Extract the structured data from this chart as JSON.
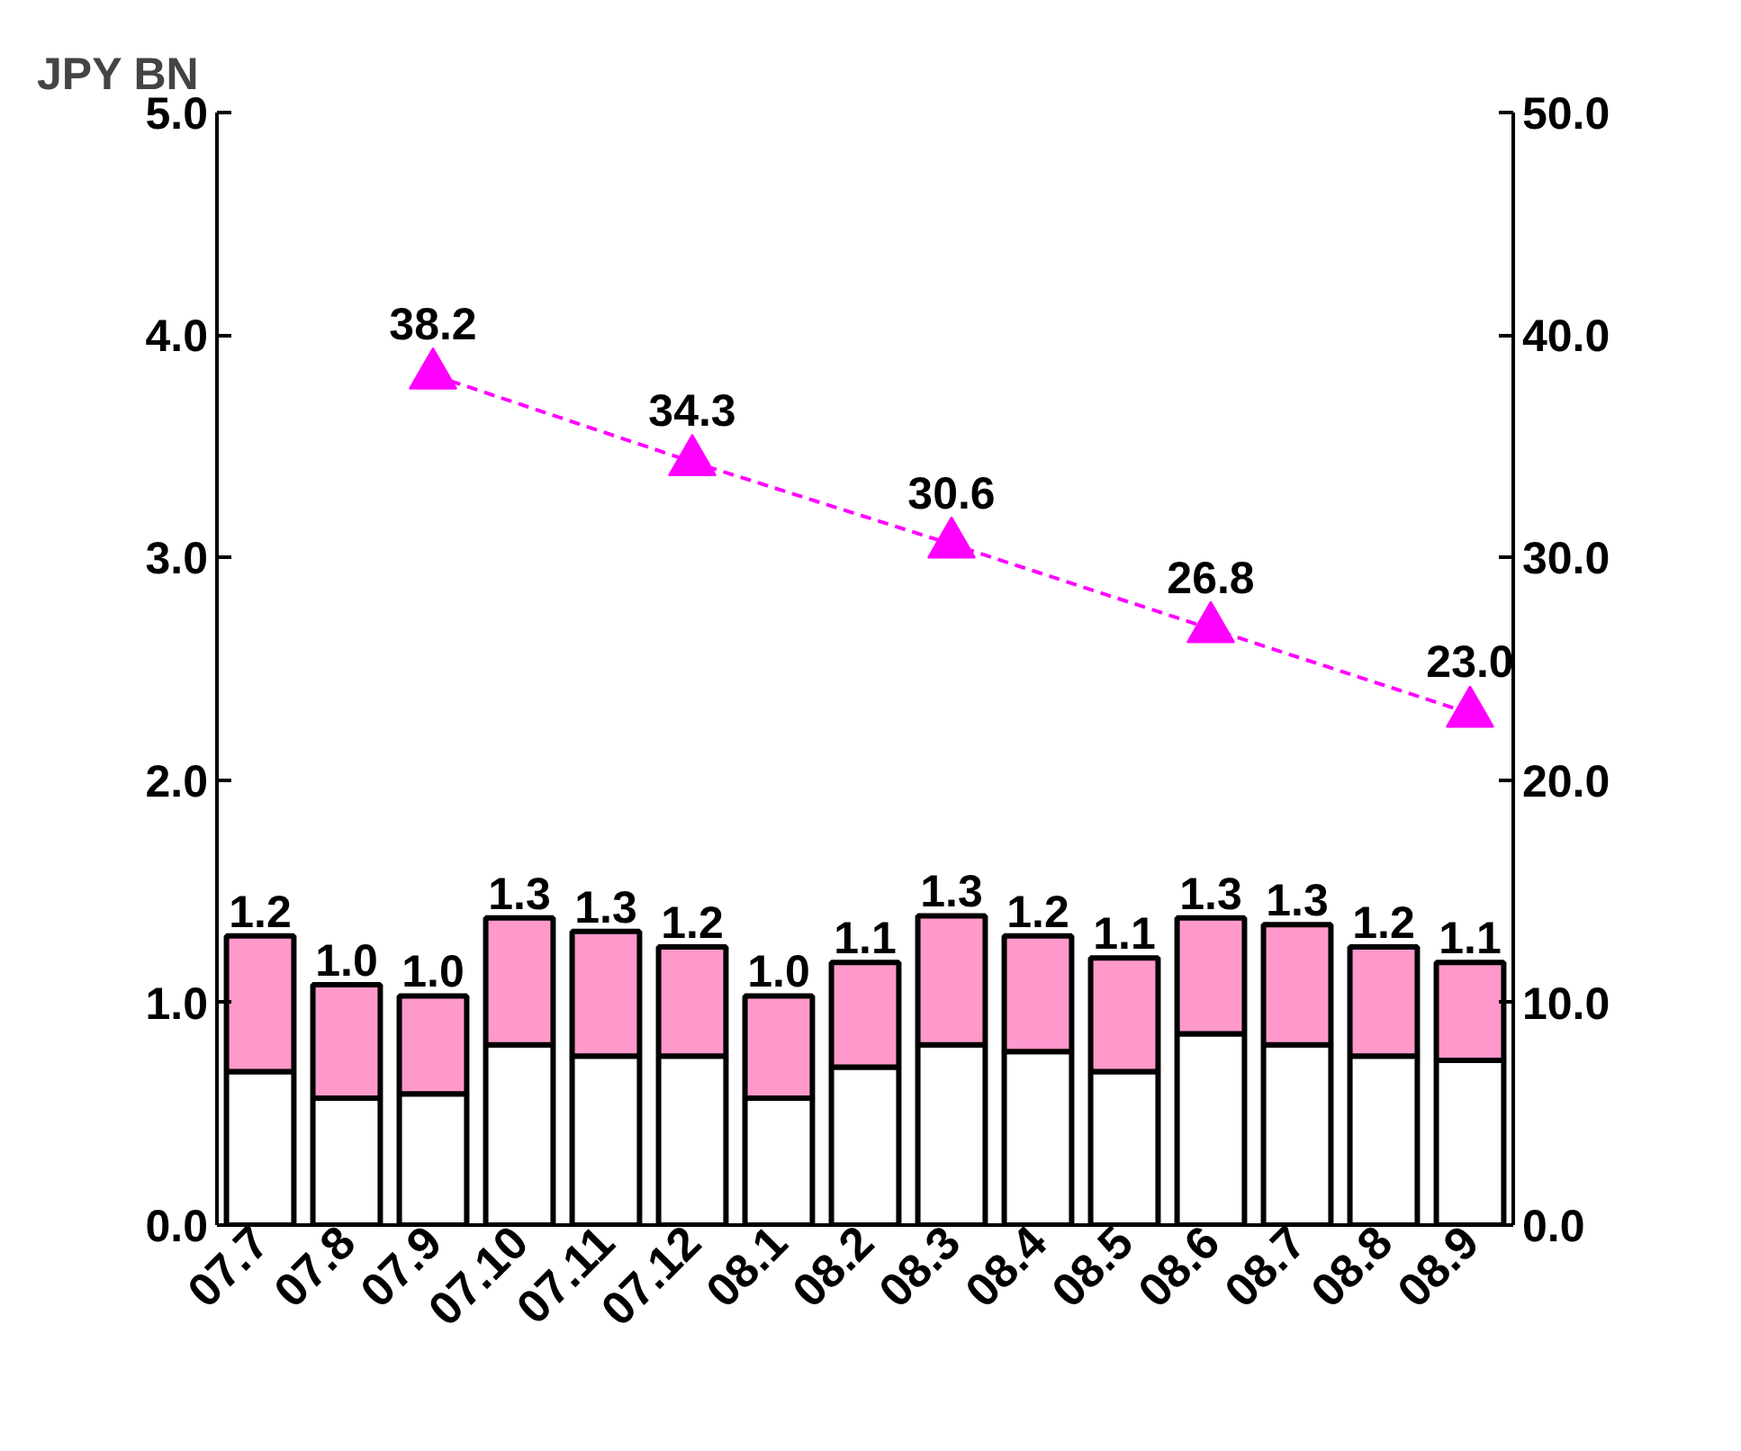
{
  "chart_data": {
    "type": "bar",
    "ylabel": "JPY BN",
    "categories": [
      "07.7",
      "07.8",
      "07.9",
      "07.10",
      "07.11",
      "07.12",
      "08.1",
      "08.2",
      "08.3",
      "08.4",
      "08.5",
      "08.6",
      "08.7",
      "08.8",
      "08.9"
    ],
    "stacked": true,
    "ylim": [
      0,
      5
    ],
    "yticks": [
      {
        "value": 0,
        "label": "0.0"
      },
      {
        "value": 1,
        "label": "1.0"
      },
      {
        "value": 2,
        "label": "2.0"
      },
      {
        "value": 3,
        "label": "3.0"
      },
      {
        "value": 4,
        "label": "4.0"
      },
      {
        "value": 5,
        "label": "5.0"
      }
    ],
    "y2lim": [
      0,
      50
    ],
    "y2ticks": [
      {
        "value": 0,
        "label": "0.0"
      },
      {
        "value": 10,
        "label": "10.0"
      },
      {
        "value": 20,
        "label": "20.0"
      },
      {
        "value": 30,
        "label": "30.0"
      },
      {
        "value": 40,
        "label": "40.0"
      },
      {
        "value": 50,
        "label": "50.0"
      }
    ],
    "series": [
      {
        "color": "#ffffff",
        "values": [
          0.69,
          0.57,
          0.59,
          0.81,
          0.76,
          0.76,
          0.57,
          0.71,
          0.81,
          0.78,
          0.69,
          0.86,
          0.81,
          0.76,
          0.74
        ]
      },
      {
        "color": "#ff99cc",
        "values": [
          0.61,
          0.51,
          0.44,
          0.57,
          0.56,
          0.49,
          0.46,
          0.47,
          0.58,
          0.52,
          0.51,
          0.52,
          0.54,
          0.49,
          0.44
        ]
      },
      {
        "type": "line",
        "axis": "y2",
        "color": "#ff00ff",
        "marker": "triangle",
        "line_style": "dashed",
        "x": [
          "07.9",
          "07.12",
          "08.3",
          "08.6",
          "08.9"
        ],
        "values": [
          38.2,
          34.3,
          30.6,
          26.8,
          23.0
        ],
        "value_labels": [
          "38.2",
          "34.3",
          "30.6",
          "26.8",
          "23.0"
        ]
      }
    ],
    "totals": [
      "1.2",
      "1.0",
      "1.0",
      "1.3",
      "1.3",
      "1.2",
      "1.0",
      "1.1",
      "1.3",
      "1.2",
      "1.1",
      "1.3",
      "1.3",
      "1.2",
      "1.1"
    ]
  }
}
